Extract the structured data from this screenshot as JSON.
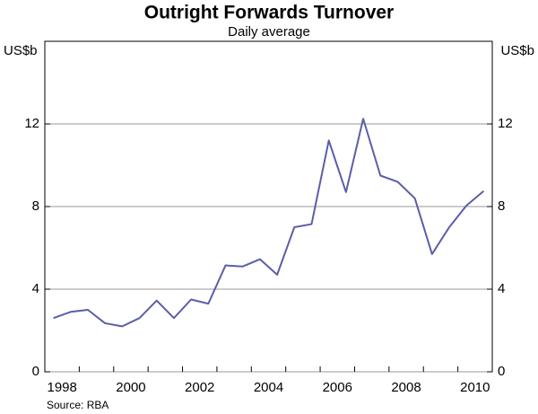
{
  "chart_data": {
    "type": "line",
    "title": "Outright Forwards Turnover",
    "subtitle": "Daily average",
    "y_label": "US$b",
    "y2_label": "US$b",
    "source": "Source: RBA",
    "x": [
      1998.25,
      1998.75,
      1999.25,
      1999.75,
      2000.25,
      2000.75,
      2001.25,
      2001.75,
      2002.25,
      2002.75,
      2003.25,
      2003.75,
      2004.25,
      2004.75,
      2005.25,
      2005.75,
      2006.25,
      2006.75,
      2007.25,
      2007.75,
      2008.25,
      2008.75,
      2009.25,
      2009.75,
      2010.25,
      2010.75
    ],
    "series": [
      {
        "name": "Outright forwards turnover",
        "color": "#5b5ea6",
        "values": [
          2.6,
          2.9,
          3.0,
          2.35,
          2.2,
          2.6,
          3.45,
          2.6,
          3.5,
          3.3,
          5.15,
          5.1,
          5.45,
          4.7,
          7.0,
          7.15,
          11.2,
          8.7,
          12.25,
          9.5,
          9.2,
          8.4,
          5.7,
          7.0,
          8.05,
          8.75
        ]
      }
    ],
    "xlim": [
      1998,
      2011
    ],
    "xticks": [
      {
        "value": 1998.5,
        "label": "1998"
      },
      {
        "value": 2000.5,
        "label": "2000"
      },
      {
        "value": 2002.5,
        "label": "2002"
      },
      {
        "value": 2004.5,
        "label": "2004"
      },
      {
        "value": 2006.5,
        "label": "2006"
      },
      {
        "value": 2008.5,
        "label": "2008"
      },
      {
        "value": 2010.5,
        "label": "2010"
      }
    ],
    "xminor": [
      1999,
      2000,
      2001,
      2002,
      2003,
      2004,
      2005,
      2006,
      2007,
      2008,
      2009,
      2010
    ],
    "ylim": [
      0,
      16
    ],
    "yticks": [
      0,
      4,
      8,
      12
    ],
    "grid": true
  }
}
